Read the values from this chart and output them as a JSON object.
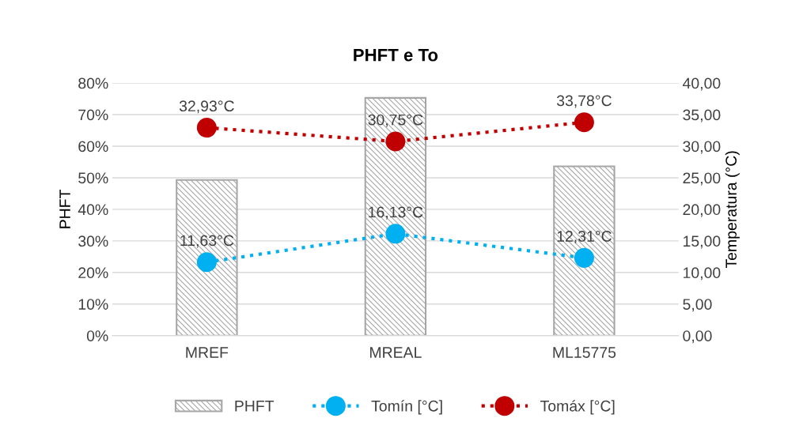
{
  "chart_data": {
    "type": "bar",
    "title": "PHFT e To",
    "ylabel": "PHFT",
    "y2label": "Temperatura (°C)",
    "categories": [
      "MREF",
      "MREAL",
      "ML15775"
    ],
    "series": [
      {
        "name": "PHFT",
        "color": "#a6a6a6",
        "values": [
          49.3,
          75.3,
          53.6
        ]
      },
      {
        "name": "Tomín [°C]",
        "type": "line",
        "axis": "y2",
        "color": "#00b0f0",
        "values": [
          11.63,
          16.13,
          12.31
        ],
        "value_labels": [
          "11,63°C",
          "16,13°C",
          "12,31°C"
        ]
      },
      {
        "name": "Tomáx [°C]",
        "type": "line",
        "axis": "y2",
        "color": "#c00000",
        "values": [
          32.93,
          30.75,
          33.78
        ],
        "value_labels": [
          "32,93°C",
          "30,75°C",
          "33,78°C"
        ]
      }
    ],
    "ylim": [
      0,
      80
    ],
    "yticks": [
      {
        "value": 0,
        "label": "0%"
      },
      {
        "value": 10,
        "label": "10%"
      },
      {
        "value": 20,
        "label": "20%"
      },
      {
        "value": 30,
        "label": "30%"
      },
      {
        "value": 40,
        "label": "40%"
      },
      {
        "value": 50,
        "label": "50%"
      },
      {
        "value": 60,
        "label": "60%"
      },
      {
        "value": 70,
        "label": "70%"
      },
      {
        "value": 80,
        "label": "80%"
      }
    ],
    "y2lim": [
      0,
      40
    ],
    "y2ticks": [
      {
        "value": 0,
        "label": "0,00"
      },
      {
        "value": 5,
        "label": "5,00"
      },
      {
        "value": 10,
        "label": "10,00"
      },
      {
        "value": 15,
        "label": "15,00"
      },
      {
        "value": 20,
        "label": "20,00"
      },
      {
        "value": 25,
        "label": "25,00"
      },
      {
        "value": 30,
        "label": "30,00"
      },
      {
        "value": 35,
        "label": "35,00"
      },
      {
        "value": 40,
        "label": "40,00"
      }
    ],
    "grid": "y",
    "legend": "bottom",
    "marker": "circle",
    "line_style": "dotted"
  }
}
